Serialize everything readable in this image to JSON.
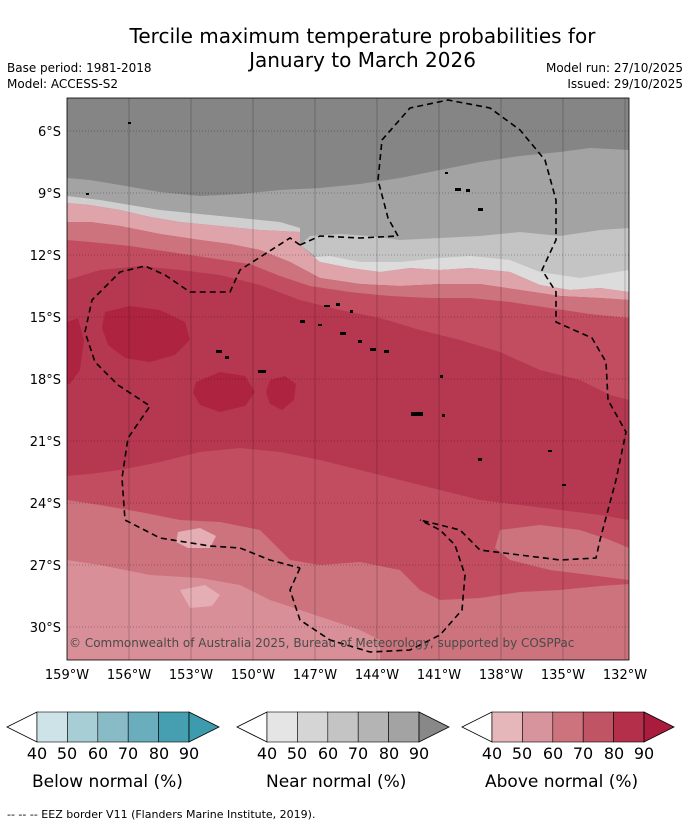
{
  "header": {
    "title_line1": "Tercile maximum temperature probabilities for",
    "title_line2": "January to March 2026",
    "base_period": "Base period: 1981-2018",
    "model": "Model: ACCESS-S2",
    "model_run": "Model run: 27/10/2025",
    "issued": "Issued: 29/10/2025"
  },
  "map": {
    "lat_labels": [
      "6°S",
      "9°S",
      "12°S",
      "15°S",
      "18°S",
      "21°S",
      "24°S",
      "27°S",
      "30°S"
    ],
    "lon_labels": [
      "159°W",
      "156°W",
      "153°W",
      "150°W",
      "147°W",
      "144°W",
      "141°W",
      "138°W",
      "135°W",
      "132°W"
    ],
    "copyright": "© Commonwealth of Australia 2025, Bureau of Meteorology, supported by COSPPac"
  },
  "legends": [
    {
      "label": "Below normal (%)",
      "ticks": [
        "40",
        "50",
        "60",
        "70",
        "80",
        "90"
      ],
      "colors": [
        "#ffffff",
        "#cde3e8",
        "#a7cdd5",
        "#89bbc6",
        "#6aaebd",
        "#459fb0",
        "#3c9cae"
      ]
    },
    {
      "label": "Near normal (%)",
      "ticks": [
        "40",
        "50",
        "60",
        "70",
        "80",
        "90"
      ],
      "colors": [
        "#ffffff",
        "#e5e5e5",
        "#d5d5d5",
        "#c4c4c4",
        "#b4b4b4",
        "#a3a3a3",
        "#888888"
      ]
    },
    {
      "label": "Above normal (%)",
      "ticks": [
        "40",
        "50",
        "60",
        "70",
        "80",
        "90"
      ],
      "colors": [
        "#ffffff",
        "#e5b7bb",
        "#d8949c",
        "#cc737d",
        "#c05465",
        "#b4304a",
        "#aa1c3c"
      ]
    }
  ],
  "footnote": "--  --  -- EEZ border V11 (Flanders Marine Institute, 2019)."
}
